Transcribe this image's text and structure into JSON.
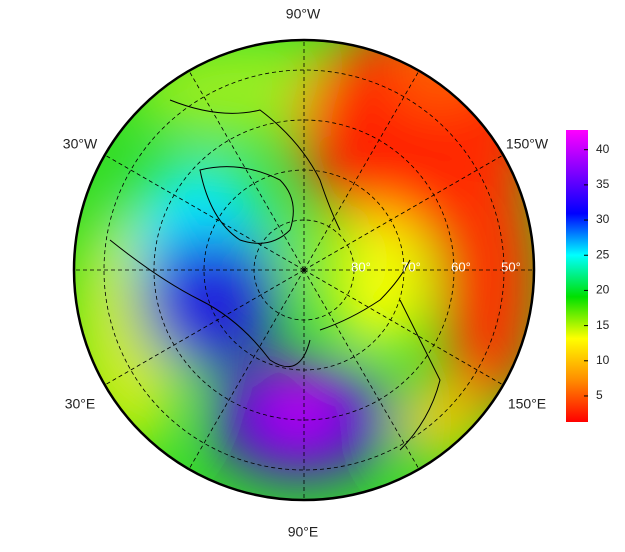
{
  "map": {
    "longitude_labels": [
      "90°W",
      "30°W",
      "150°W",
      "30°E",
      "150°E",
      "90°E"
    ],
    "latitude_labels": [
      "80°",
      "70°",
      "60°",
      "50°"
    ],
    "colorbar": {
      "lim": [
        1.3,
        42.8
      ],
      "ticks": [
        5,
        10,
        15,
        20,
        25,
        30,
        35,
        40
      ],
      "colors": [
        "#ff0000",
        "#ff8c00",
        "#ffff00",
        "#00e000",
        "#00ffff",
        "#0000ff",
        "#8000ff",
        "#ff00ff"
      ]
    }
  }
}
